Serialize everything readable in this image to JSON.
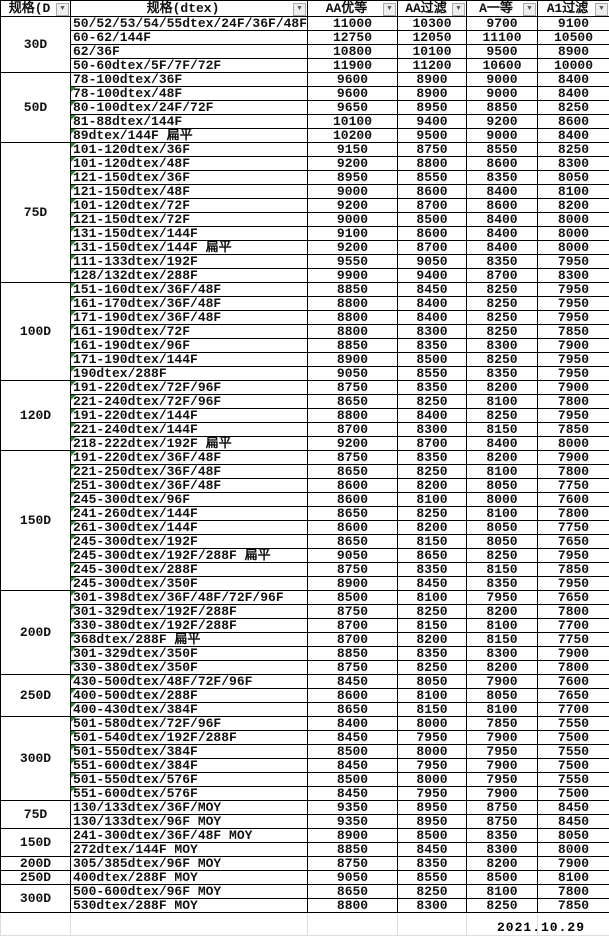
{
  "headers": [
    "规格(D",
    "规格(dtex)",
    "AA优等",
    "AA过滤",
    "A一等",
    "A1过滤"
  ],
  "filter_icon": "dropdown-arrow-icon",
  "groups": [
    {
      "label": "30D",
      "rows": [
        [
          "50/52/53/54/55dtex/24F/36F/48F",
          "11000",
          "10300",
          "9700",
          "9100"
        ],
        [
          "60-62/144F",
          "12750",
          "12050",
          "11100",
          "10500"
        ],
        [
          "62/36F",
          "10800",
          "10100",
          "9500",
          "8900"
        ],
        [
          "50-60dtex/5F/7F/72F",
          "11900",
          "11200",
          "10600",
          "10000"
        ]
      ]
    },
    {
      "label": "50D",
      "rows": [
        [
          "78-100dtex/36F",
          "9600",
          "8900",
          "9000",
          "8400"
        ],
        [
          "78-100dtex/48F",
          "9600",
          "8900",
          "9000",
          "8400"
        ],
        [
          "80-100dtex/24F/72F",
          "9650",
          "8950",
          "8850",
          "8250"
        ],
        [
          "81-88dtex/144F",
          "10100",
          "9400",
          "9200",
          "8600"
        ],
        [
          "89dtex/144F 扁平",
          "10200",
          "9500",
          "9000",
          "8400"
        ]
      ]
    },
    {
      "label": "75D",
      "rows": [
        [
          "101-120dtex/36F",
          "9150",
          "8750",
          "8550",
          "8250"
        ],
        [
          "101-120dtex/48F",
          "9200",
          "8800",
          "8600",
          "8300"
        ],
        [
          "121-150dtex/36F",
          "8950",
          "8550",
          "8350",
          "8050"
        ],
        [
          "121-150dtex/48F",
          "9000",
          "8600",
          "8400",
          "8100"
        ],
        [
          "101-120dtex/72F",
          "9200",
          "8700",
          "8600",
          "8200"
        ],
        [
          "121-150dtex/72F",
          "9000",
          "8500",
          "8400",
          "8000"
        ],
        [
          "131-150dtex/144F",
          "9100",
          "8600",
          "8400",
          "8000"
        ],
        [
          "131-150dtex/144F 扁平",
          "9200",
          "8700",
          "8400",
          "8000"
        ],
        [
          "111-133dtex/192F",
          "9550",
          "9050",
          "8350",
          "7950"
        ],
        [
          "128/132dtex/288F",
          "9900",
          "9400",
          "8700",
          "8300"
        ]
      ]
    },
    {
      "label": "100D",
      "rows": [
        [
          "151-160dtex/36F/48F",
          "8850",
          "8450",
          "8250",
          "7950"
        ],
        [
          "161-170dtex/36F/48F",
          "8800",
          "8400",
          "8250",
          "7950"
        ],
        [
          "171-190dtex/36F/48F",
          "8800",
          "8400",
          "8250",
          "7950"
        ],
        [
          "161-190dtex/72F",
          "8800",
          "8300",
          "8250",
          "7850"
        ],
        [
          "161-190dtex/96F",
          "8850",
          "8350",
          "8300",
          "7900"
        ],
        [
          "171-190dtex/144F",
          "8900",
          "8500",
          "8250",
          "7950"
        ],
        [
          "190dtex/288F",
          "9050",
          "8550",
          "8350",
          "7950"
        ]
      ]
    },
    {
      "label": "120D",
      "rows": [
        [
          "191-220dtex/72F/96F",
          "8750",
          "8350",
          "8200",
          "7900"
        ],
        [
          "221-240dtex/72F/96F",
          "8650",
          "8250",
          "8100",
          "7800"
        ],
        [
          "191-220dtex/144F",
          "8800",
          "8400",
          "8250",
          "7950"
        ],
        [
          "221-240dtex/144F",
          "8700",
          "8300",
          "8150",
          "7850"
        ],
        [
          "218-222dtex/192F 扁平",
          "9200",
          "8700",
          "8400",
          "8000"
        ]
      ]
    },
    {
      "label": "150D",
      "rows": [
        [
          "191-220dtex/36F/48F",
          "8750",
          "8350",
          "8200",
          "7900"
        ],
        [
          "221-250dtex/36F/48F",
          "8650",
          "8250",
          "8100",
          "7800"
        ],
        [
          "251-300dtex/36F/48F",
          "8600",
          "8200",
          "8050",
          "7750"
        ],
        [
          "245-300dtex/96F",
          "8600",
          "8100",
          "8000",
          "7600"
        ],
        [
          "241-260dtex/144F",
          "8650",
          "8250",
          "8100",
          "7800"
        ],
        [
          "261-300dtex/144F",
          "8600",
          "8200",
          "8050",
          "7750"
        ],
        [
          "245-300dtex/192F",
          "8650",
          "8150",
          "8050",
          "7650"
        ],
        [
          "245-300dtex/192F/288F 扁平",
          "9050",
          "8650",
          "8250",
          "7950"
        ],
        [
          "245-300dtex/288F",
          "8750",
          "8350",
          "8150",
          "7850"
        ],
        [
          "245-300dtex/350F",
          "8900",
          "8450",
          "8350",
          "7950"
        ]
      ]
    },
    {
      "label": "200D",
      "rows": [
        [
          "301-398dtex/36F/48F/72F/96F",
          "8500",
          "8100",
          "7950",
          "7650"
        ],
        [
          "301-329dtex/192F/288F",
          "8750",
          "8250",
          "8200",
          "7800"
        ],
        [
          "330-380dtex/192F/288F",
          "8700",
          "8150",
          "8100",
          "7700"
        ],
        [
          "368dtex/288F 扁平",
          "8700",
          "8200",
          "8150",
          "7750"
        ],
        [
          "301-329dtex/350F",
          "8850",
          "8350",
          "8300",
          "7900"
        ],
        [
          "330-380dtex/350F",
          "8750",
          "8250",
          "8200",
          "7800"
        ]
      ]
    },
    {
      "label": "250D",
      "rows": [
        [
          "430-500dtex/48F/72F/96F",
          "8450",
          "8050",
          "7900",
          "7600"
        ],
        [
          "400-500dtex/288F",
          "8600",
          "8100",
          "8050",
          "7650"
        ],
        [
          "400-430dtex/384F",
          "8650",
          "8150",
          "8100",
          "7700"
        ]
      ]
    },
    {
      "label": "300D",
      "rows": [
        [
          "501-580dtex/72F/96F",
          "8400",
          "8000",
          "7850",
          "7550"
        ],
        [
          "501-540dtex/192F/288F",
          "8450",
          "7950",
          "7900",
          "7500"
        ],
        [
          "501-550dtex/384F",
          "8500",
          "8000",
          "7950",
          "7550"
        ],
        [
          "551-600dtex/384F",
          "8450",
          "7950",
          "7900",
          "7500"
        ],
        [
          "501-550dtex/576F",
          "8500",
          "8000",
          "7950",
          "7550"
        ],
        [
          "551-600dtex/576F",
          "8450",
          "7950",
          "7900",
          "7500"
        ]
      ]
    },
    {
      "label": "75D",
      "rows": [
        [
          "130/133dtex/36F/MOY",
          "9350",
          "8950",
          "8750",
          "8450"
        ],
        [
          "130/133dtex/96F MOY",
          "9350",
          "8950",
          "8750",
          "8450"
        ]
      ]
    },
    {
      "label": "150D",
      "rows": [
        [
          "241-300dtex/36F/48F  MOY",
          "8900",
          "8500",
          "8350",
          "8050"
        ],
        [
          "272dtex/144F   MOY",
          "8850",
          "8450",
          "8300",
          "8000"
        ]
      ]
    },
    {
      "label": "200D",
      "rows": [
        [
          "305/385dtex/96F   MOY",
          "8750",
          "8350",
          "8200",
          "7900"
        ]
      ]
    },
    {
      "label": "250D",
      "rows": [
        [
          "400dtex/288F MOY",
          "9050",
          "8550",
          "8500",
          "8100"
        ]
      ]
    },
    {
      "label": "300D",
      "rows": [
        [
          "500-600dtex/96F MOY",
          "8650",
          "8250",
          "8100",
          "7800"
        ],
        [
          "530dtex/288F MOY",
          "8800",
          "8300",
          "8250",
          "7850"
        ]
      ]
    }
  ],
  "date": "2021.10.29"
}
